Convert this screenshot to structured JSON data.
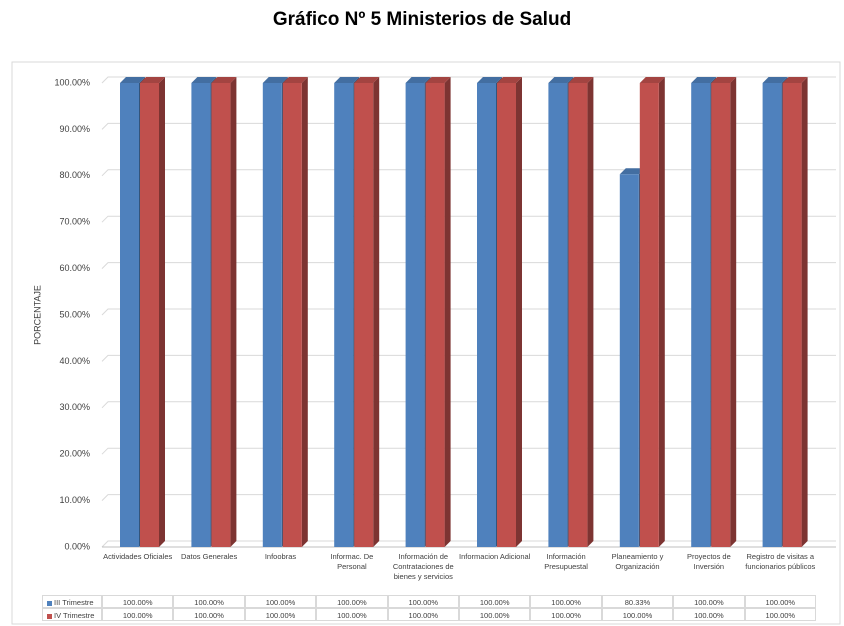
{
  "chart_data": {
    "type": "bar",
    "title": "Gráfico Nº 5 Ministerios de Salud",
    "ylabel": "PORCENTAJE",
    "categories": [
      "Actividades Oficiales",
      "Datos Generales",
      "Infoobras",
      "Informac. De Personal",
      "Información de Contrataciones de bienes y servicios",
      "Informacion Adicional",
      "Información Presupuestal",
      "Planeamiento y Organización",
      "Proyectos de Inversión",
      "Registro de visitas a funcionarios públicos"
    ],
    "series": [
      {
        "name": "III Trimestre",
        "color": "#4f81bd",
        "values": [
          100,
          100,
          100,
          100,
          100,
          100,
          100,
          80.33,
          100,
          100
        ],
        "value_labels": [
          "100.00%",
          "100.00%",
          "100.00%",
          "100.00%",
          "100.00%",
          "100.00%",
          "100.00%",
          "80.33%",
          "100.00%",
          "100.00%"
        ]
      },
      {
        "name": "IV Trimestre",
        "color": "#c0504d",
        "values": [
          100,
          100,
          100,
          100,
          100,
          100,
          100,
          100,
          100,
          100
        ],
        "value_labels": [
          "100.00%",
          "100.00%",
          "100.00%",
          "100.00%",
          "100.00%",
          "100.00%",
          "100.00%",
          "100.00%",
          "100.00%",
          "100.00%"
        ]
      }
    ],
    "ylim": [
      0,
      100
    ],
    "yticks": [
      {
        "value": 0,
        "label": "0.00%"
      },
      {
        "value": 10,
        "label": "10.00%"
      },
      {
        "value": 20,
        "label": "20.00%"
      },
      {
        "value": 30,
        "label": "30.00%"
      },
      {
        "value": 40,
        "label": "40.00%"
      },
      {
        "value": 50,
        "label": "50.00%"
      },
      {
        "value": 60,
        "label": "60.00%"
      },
      {
        "value": 70,
        "label": "70.00%"
      },
      {
        "value": 80,
        "label": "80.00%"
      },
      {
        "value": 90,
        "label": "90.00%"
      },
      {
        "value": 100,
        "label": "100.00%"
      }
    ],
    "grid": true,
    "legend": "bottom"
  }
}
